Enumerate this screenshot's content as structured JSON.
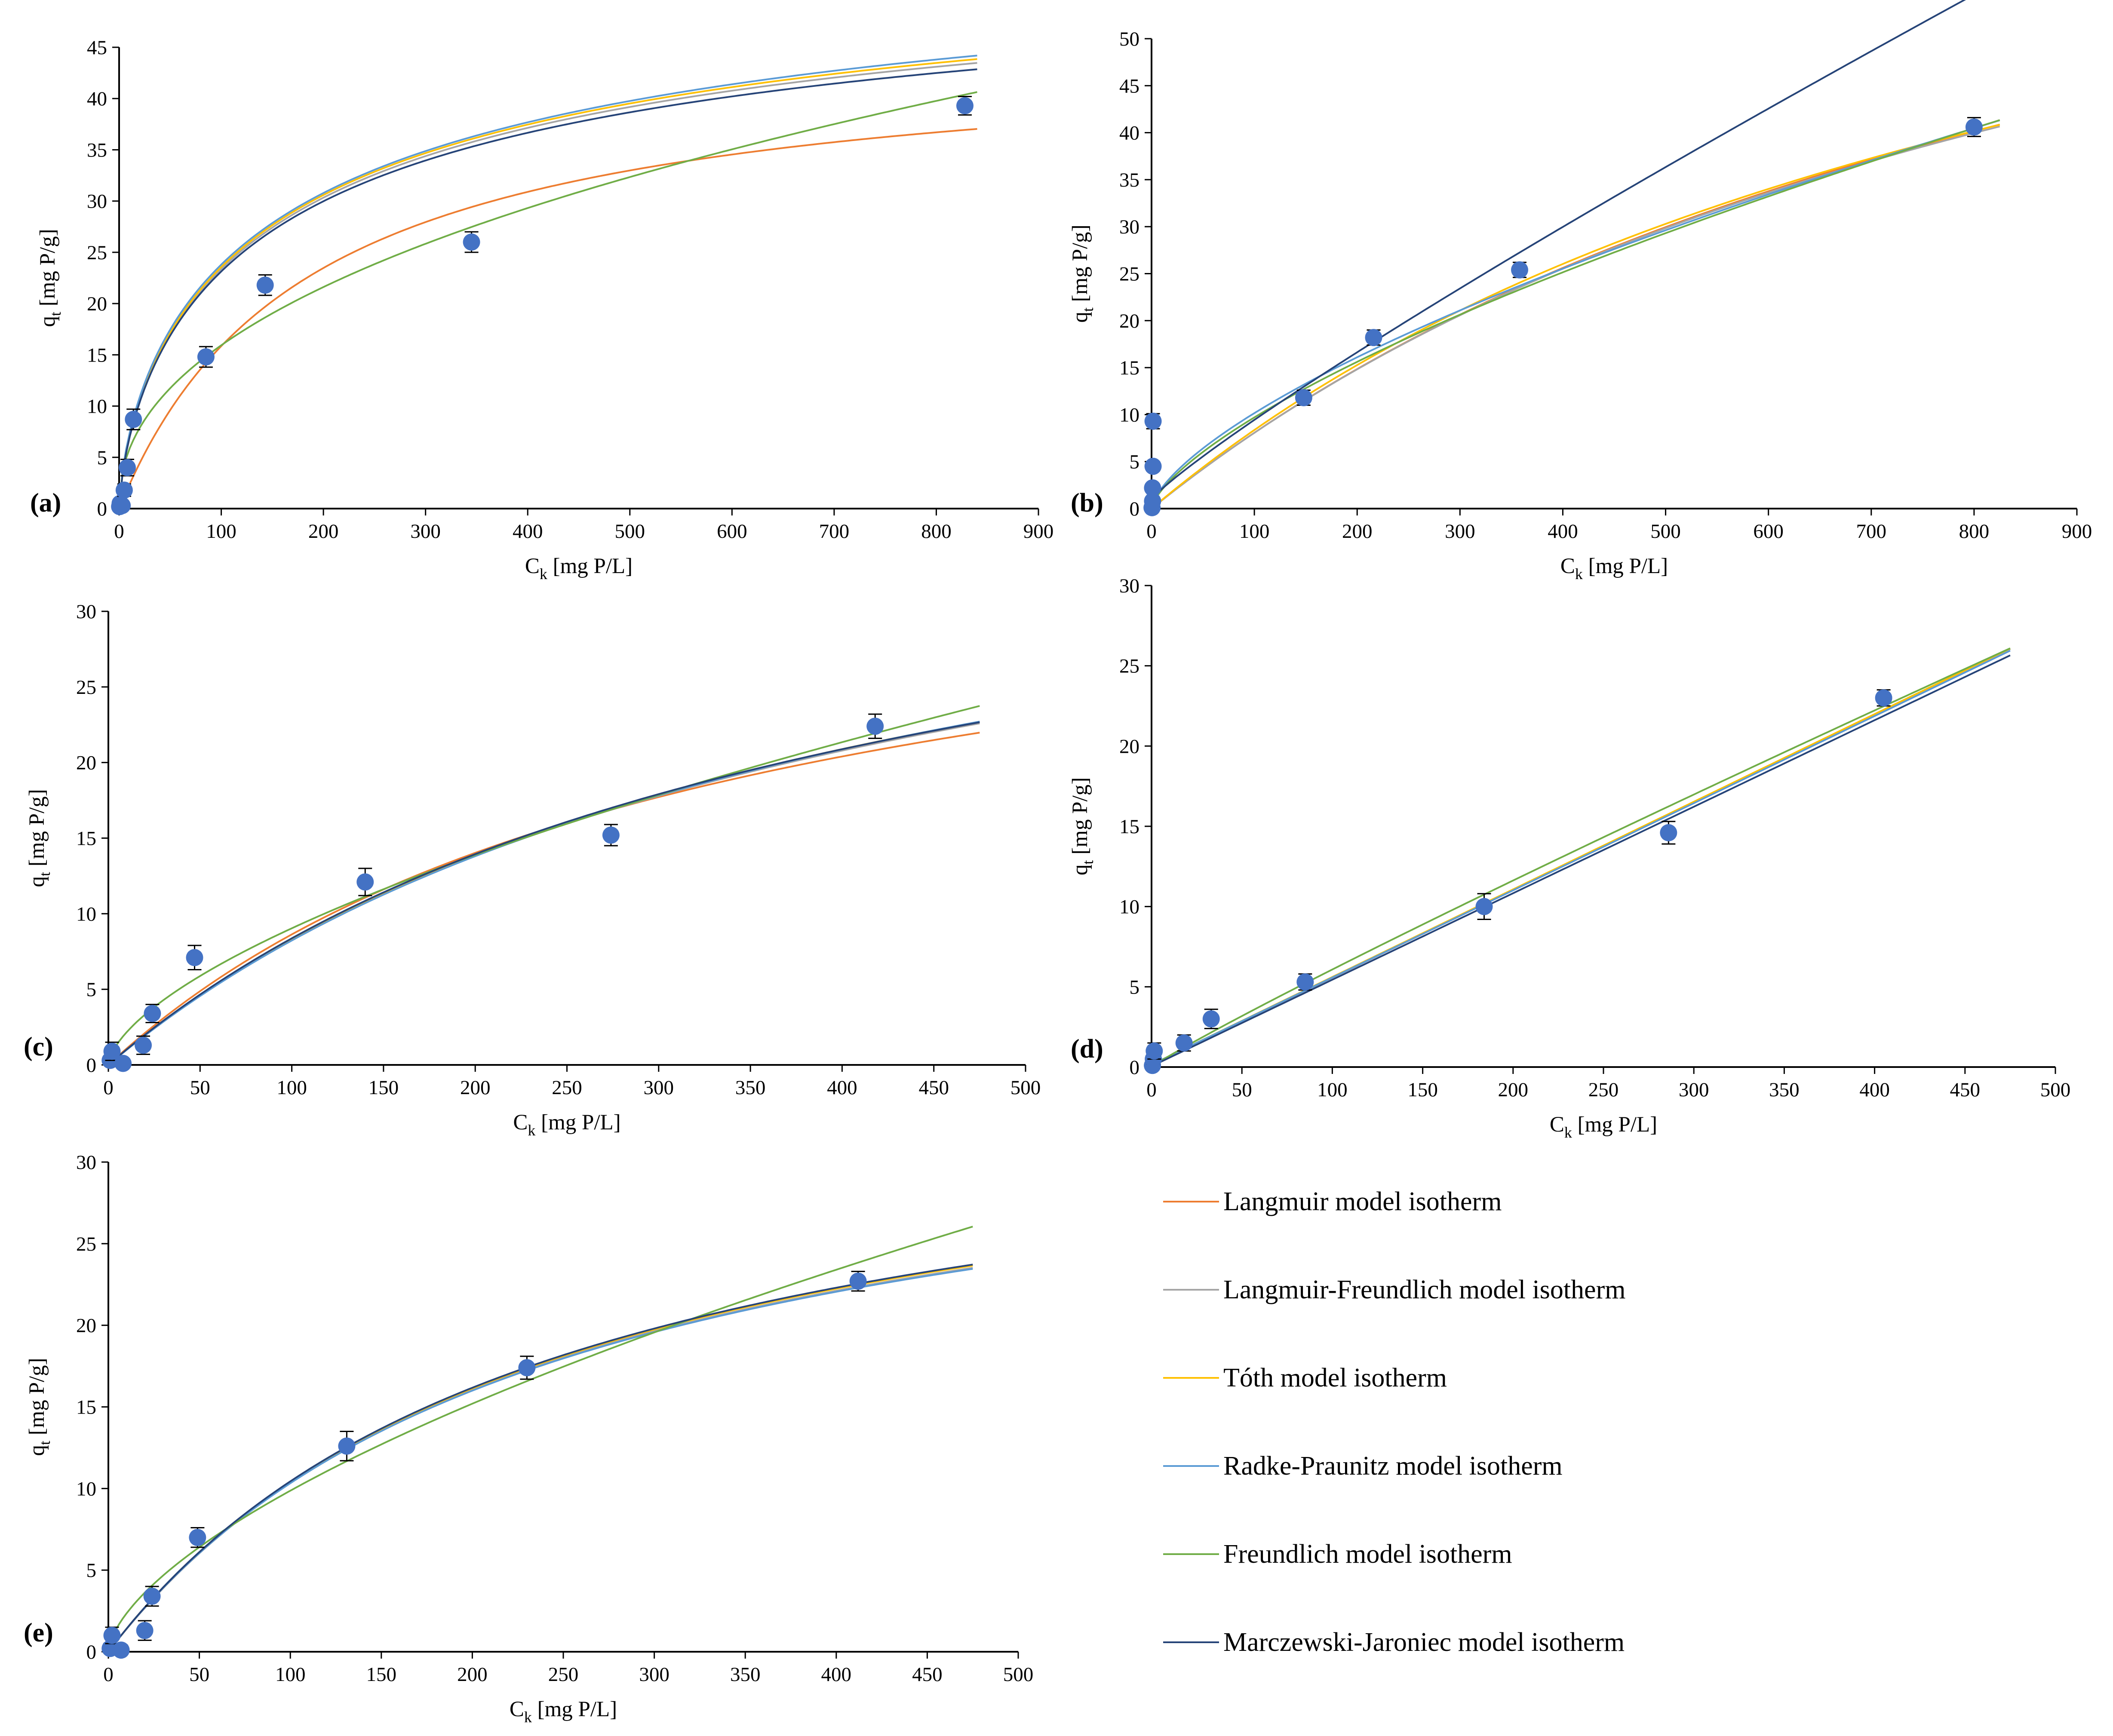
{
  "chart_data": [
    {
      "id": "a",
      "type": "scatter+line",
      "panel_label": "(a)",
      "xlabel": "C",
      "xlabel_sub": "k",
      "xlabel_unit": " [mg P/L]",
      "ylabel": "q",
      "ylabel_sub": "t",
      "ylabel_unit": " [mg P/g]",
      "xlim": [
        0,
        900
      ],
      "ylim": [
        0,
        45
      ],
      "xticks": [
        0,
        100,
        200,
        300,
        400,
        500,
        600,
        700,
        800,
        900
      ],
      "yticks": [
        0,
        5,
        10,
        15,
        20,
        25,
        30,
        35,
        40,
        45
      ],
      "points": [
        {
          "x": 0.5,
          "y": 0.2,
          "err": 0.3
        },
        {
          "x": 1,
          "y": 0.5,
          "err": 0.3
        },
        {
          "x": 3,
          "y": 0.3,
          "err": 0.3
        },
        {
          "x": 5,
          "y": 1.8,
          "err": 0.6
        },
        {
          "x": 8,
          "y": 4.0,
          "err": 0.8
        },
        {
          "x": 14,
          "y": 8.7,
          "err": 1.0
        },
        {
          "x": 85,
          "y": 14.8,
          "err": 1.0
        },
        {
          "x": 143,
          "y": 21.8,
          "err": 1.0
        },
        {
          "x": 345,
          "y": 26.0,
          "err": 1.0
        },
        {
          "x": 828,
          "y": 39.3,
          "err": 0.9
        }
      ],
      "xmax": 840,
      "series": [
        {
          "name": "Langmuir model isotherm",
          "model": "langmuir",
          "params": {
            "qm": 45.2,
            "K": 0.0054
          }
        },
        {
          "name": "Langmuir-Freundlich model isotherm",
          "model": "sips",
          "params": {
            "qm": 58,
            "K": 0.0057,
            "n": 0.7
          }
        },
        {
          "name": "Tóth model isotherm",
          "model": "sips",
          "params": {
            "qm": 58.5,
            "K": 0.0057,
            "n": 0.7
          }
        },
        {
          "name": "Radke-Praunitz model isotherm",
          "model": "sips",
          "params": {
            "qm": 60,
            "K": 0.0054,
            "n": 0.68
          }
        },
        {
          "name": "Freundlich model isotherm",
          "model": "freundlich",
          "params": {
            "KF": 2.1,
            "n": 0.44
          }
        },
        {
          "name": "Marczewski-Jaroniec model isotherm",
          "model": "sips",
          "params": {
            "qm": 57,
            "K": 0.0058,
            "n": 0.7
          }
        }
      ]
    },
    {
      "id": "b",
      "type": "scatter+line",
      "panel_label": "(b)",
      "xlabel": "C",
      "xlabel_sub": "k",
      "xlabel_unit": " [mg P/L]",
      "ylabel": "q",
      "ylabel_sub": "t",
      "ylabel_unit": " [mg P/g]",
      "xlim": [
        0,
        900
      ],
      "ylim": [
        0,
        50
      ],
      "xticks": [
        0,
        100,
        200,
        300,
        400,
        500,
        600,
        700,
        800,
        900
      ],
      "yticks": [
        0,
        5,
        10,
        15,
        20,
        25,
        30,
        35,
        40,
        45,
        50
      ],
      "points": [
        {
          "x": 0.5,
          "y": 0.1,
          "err": 0.3
        },
        {
          "x": 1,
          "y": 0.8,
          "err": 0.3
        },
        {
          "x": 1,
          "y": 2.2,
          "err": 0.4
        },
        {
          "x": 1.5,
          "y": 4.5,
          "err": 0.5
        },
        {
          "x": 1.5,
          "y": 9.3,
          "err": 0.8
        },
        {
          "x": 148,
          "y": 11.8,
          "err": 0.8
        },
        {
          "x": 216,
          "y": 18.2,
          "err": 0.8
        },
        {
          "x": 358,
          "y": 25.4,
          "err": 0.8
        },
        {
          "x": 800,
          "y": 40.6,
          "err": 1.0
        }
      ],
      "xmax": 825,
      "series": [
        {
          "name": "Langmuir model isotherm",
          "model": "langmuir",
          "params": {
            "qm": 93,
            "K": 0.00095
          }
        },
        {
          "name": "Langmuir-Freundlich model isotherm",
          "model": "langmuir",
          "params": {
            "qm": 92,
            "K": 0.00096
          }
        },
        {
          "name": "Tóth model isotherm",
          "model": "langmuir",
          "params": {
            "qm": 88,
            "K": 0.00105
          }
        },
        {
          "name": "Radke-Praunitz model isotherm",
          "model": "freundlich",
          "params": {
            "KF": 0.475,
            "n": 0.665
          }
        },
        {
          "name": "Freundlich model isotherm",
          "model": "freundlich",
          "params": {
            "KF": 0.41,
            "n": 0.687
          }
        },
        {
          "name": "Marczewski-Jaroniec model isotherm",
          "model": "linpow",
          "params": {
            "a": 1.0,
            "b": 0.14,
            "n": 0.89
          }
        }
      ]
    },
    {
      "id": "c",
      "type": "scatter+line",
      "panel_label": "(c)",
      "xlabel": "C",
      "xlabel_sub": "k",
      "xlabel_unit": " [mg P/L]",
      "ylabel": "q",
      "ylabel_sub": "t",
      "ylabel_unit": " [mg P/g]",
      "xlim": [
        0,
        500
      ],
      "ylim": [
        0,
        30
      ],
      "xticks": [
        0,
        50,
        100,
        150,
        200,
        250,
        300,
        350,
        400,
        450,
        500
      ],
      "yticks": [
        0,
        5,
        10,
        15,
        20,
        25,
        30
      ],
      "points": [
        {
          "x": 1,
          "y": 0.3,
          "err": 0.3
        },
        {
          "x": 2,
          "y": 0.9,
          "err": 0.6
        },
        {
          "x": 8,
          "y": 0.1,
          "err": 0.3
        },
        {
          "x": 19,
          "y": 1.3,
          "err": 0.6
        },
        {
          "x": 24,
          "y": 3.4,
          "err": 0.6
        },
        {
          "x": 47,
          "y": 7.1,
          "err": 0.8
        },
        {
          "x": 140,
          "y": 12.1,
          "err": 0.9
        },
        {
          "x": 274,
          "y": 15.2,
          "err": 0.7
        },
        {
          "x": 418,
          "y": 22.4,
          "err": 0.8
        }
      ],
      "xmax": 475,
      "series": [
        {
          "name": "Langmuir model isotherm",
          "model": "langmuir",
          "params": {
            "qm": 37.4,
            "K": 0.003
          }
        },
        {
          "name": "Langmuir-Freundlich model isotherm",
          "model": "langmuir",
          "params": {
            "qm": 42,
            "K": 0.00245
          }
        },
        {
          "name": "Tóth model isotherm",
          "model": "langmuir",
          "params": {
            "qm": 42.2,
            "K": 0.00245
          }
        },
        {
          "name": "Radke-Praunitz model isotherm",
          "model": "langmuir",
          "params": {
            "qm": 42.8,
            "K": 0.00238
          }
        },
        {
          "name": "Freundlich model isotherm",
          "model": "freundlich",
          "params": {
            "KF": 0.52,
            "n": 0.62
          }
        },
        {
          "name": "Marczewski-Jaroniec model isotherm",
          "model": "langmuir",
          "params": {
            "qm": 41.6,
            "K": 0.00252
          }
        }
      ]
    },
    {
      "id": "d",
      "type": "scatter+line",
      "panel_label": "(d)",
      "xlabel": "C",
      "xlabel_sub": "k",
      "xlabel_unit": " [mg P/L]",
      "ylabel": "q",
      "ylabel_sub": "t",
      "ylabel_unit": " [mg P/g]",
      "xlim": [
        0,
        500
      ],
      "ylim": [
        0,
        30
      ],
      "xticks": [
        0,
        50,
        100,
        150,
        200,
        250,
        300,
        350,
        400,
        450,
        500
      ],
      "yticks": [
        0,
        5,
        10,
        15,
        20,
        25,
        30
      ],
      "points": [
        {
          "x": 0.5,
          "y": 0.1,
          "err": 0.3
        },
        {
          "x": 1,
          "y": 0.5,
          "err": 0.3
        },
        {
          "x": 1.5,
          "y": 1.0,
          "err": 0.5
        },
        {
          "x": 18,
          "y": 1.5,
          "err": 0.5
        },
        {
          "x": 33,
          "y": 3.0,
          "err": 0.6
        },
        {
          "x": 85,
          "y": 5.3,
          "err": 0.5
        },
        {
          "x": 184,
          "y": 10.0,
          "err": 0.8
        },
        {
          "x": 286,
          "y": 14.6,
          "err": 0.7
        },
        {
          "x": 405,
          "y": 23.0,
          "err": 0.5
        }
      ],
      "xmax": 475,
      "series": [
        {
          "name": "Langmuir model isotherm",
          "model": "linpow",
          "params": {
            "a": 0.1,
            "b": 0.05466,
            "n": 1
          }
        },
        {
          "name": "Langmuir-Freundlich model isotherm",
          "model": "linpow",
          "params": {
            "a": 0.1,
            "b": 0.0546,
            "n": 1
          }
        },
        {
          "name": "Tóth model isotherm",
          "model": "linpow",
          "params": {
            "a": 0.15,
            "b": 0.0546,
            "n": 1
          }
        },
        {
          "name": "Radke-Praunitz model isotherm",
          "model": "linpow",
          "params": {
            "a": 0.15,
            "b": 0.0543,
            "n": 1
          }
        },
        {
          "name": "Freundlich model isotherm",
          "model": "freundlich",
          "params": {
            "KF": 0.082,
            "n": 0.935
          }
        },
        {
          "name": "Marczewski-Jaroniec model isotherm",
          "model": "linpow",
          "params": {
            "a": 0.05,
            "b": 0.0539,
            "n": 1
          }
        }
      ]
    },
    {
      "id": "e",
      "type": "scatter+line",
      "panel_label": "(e)",
      "xlabel": "C",
      "xlabel_sub": "k",
      "xlabel_unit": " [mg P/L]",
      "ylabel": "q",
      "ylabel_sub": "t",
      "ylabel_unit": " [mg P/g]",
      "xlim": [
        0,
        500
      ],
      "ylim": [
        0,
        30
      ],
      "xticks": [
        0,
        50,
        100,
        150,
        200,
        250,
        300,
        350,
        400,
        450,
        500
      ],
      "yticks": [
        0,
        5,
        10,
        15,
        20,
        25,
        30
      ],
      "points": [
        {
          "x": 1,
          "y": 0.2,
          "err": 0.3
        },
        {
          "x": 2,
          "y": 1.0,
          "err": 0.5
        },
        {
          "x": 7,
          "y": 0.1,
          "err": 0.3
        },
        {
          "x": 20,
          "y": 1.3,
          "err": 0.6
        },
        {
          "x": 24,
          "y": 3.4,
          "err": 0.6
        },
        {
          "x": 49,
          "y": 7.0,
          "err": 0.6
        },
        {
          "x": 131,
          "y": 12.6,
          "err": 0.9
        },
        {
          "x": 230,
          "y": 17.4,
          "err": 0.7
        },
        {
          "x": 412,
          "y": 22.7,
          "err": 0.6
        }
      ],
      "xmax": 475,
      "series": [
        {
          "name": "Langmuir model isotherm",
          "model": "langmuir",
          "params": {
            "qm": 36.2,
            "K": 0.004
          }
        },
        {
          "name": "Langmuir-Freundlich model isotherm",
          "model": "langmuir",
          "params": {
            "qm": 35.6,
            "K": 0.0041
          }
        },
        {
          "name": "Tóth model isotherm",
          "model": "langmuir",
          "params": {
            "qm": 35.8,
            "K": 0.0041
          }
        },
        {
          "name": "Radke-Praunitz model isotherm",
          "model": "langmuir",
          "params": {
            "qm": 35.5,
            "K": 0.0041
          }
        },
        {
          "name": "Freundlich model isotherm",
          "model": "freundlich",
          "params": {
            "KF": 0.56,
            "n": 0.623
          }
        },
        {
          "name": "Marczewski-Jaroniec model isotherm",
          "model": "langmuir",
          "params": {
            "qm": 35.9,
            "K": 0.0041
          }
        }
      ]
    }
  ],
  "legend": {
    "items": [
      {
        "label": "Langmuir model isotherm",
        "color": "#ED7D31"
      },
      {
        "label": "Langmuir-Freundlich model isotherm",
        "color": "#A5A5A5"
      },
      {
        "label": "Tóth model isotherm",
        "color": "#FFC000"
      },
      {
        "label": "Radke-Praunitz model isotherm",
        "color": "#5B9BD5"
      },
      {
        "label": "Freundlich model isotherm",
        "color": "#70AD47"
      },
      {
        "label": "Marczewski-Jaroniec model isotherm",
        "color": "#264478"
      }
    ]
  },
  "colors": {
    "marker": "#4472C4",
    "errorbar": "#000000",
    "axis": "#000000"
  }
}
